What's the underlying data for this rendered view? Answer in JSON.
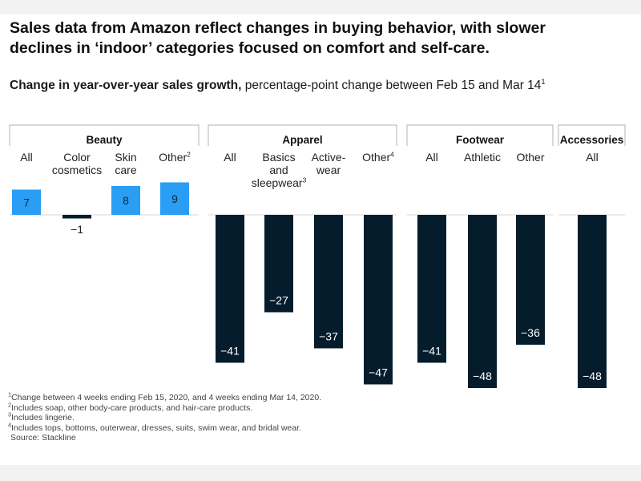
{
  "title": "Sales data from Amazon reflect changes in buying behavior, with slower declines in ‘indoor’ categories focused on comfort and self-care.",
  "subtitle": {
    "bold": "Change in year-over-year sales growth,",
    "rest": " percentage-point change between Feb 15 and Mar 14",
    "sup": "1"
  },
  "colors": {
    "positive": "#2a9df4",
    "negative": "#051c2c",
    "group_line": "#b3b3b3"
  },
  "chart_data": {
    "type": "bar",
    "title": "Change in year-over-year sales growth",
    "ylabel": "percentage-point change between Feb 15 and Mar 14",
    "ylim": [
      -50,
      10
    ],
    "grid": false,
    "groups": [
      {
        "name": "Beauty",
        "categories": [
          {
            "label": "All",
            "sup": "",
            "value": 7
          },
          {
            "label": "Color cosmetics",
            "sup": "",
            "value": -1
          },
          {
            "label": "Skin care",
            "sup": "",
            "value": 8
          },
          {
            "label": "Other",
            "sup": "2",
            "value": 9
          }
        ]
      },
      {
        "name": "Apparel",
        "categories": [
          {
            "label": "All",
            "sup": "",
            "value": -41
          },
          {
            "label": "Basics and sleepwear",
            "sup": "3",
            "value": -27
          },
          {
            "label": "Active-wear",
            "sup": "",
            "value": -37
          },
          {
            "label": "Other",
            "sup": "4",
            "value": -47
          }
        ]
      },
      {
        "name": "Footwear",
        "categories": [
          {
            "label": "All",
            "sup": "",
            "value": -41
          },
          {
            "label": "Athletic",
            "sup": "",
            "value": -48
          },
          {
            "label": "Other",
            "sup": "",
            "value": -36
          }
        ]
      },
      {
        "name": "Accessories",
        "categories": [
          {
            "label": "All",
            "sup": "",
            "value": -48
          }
        ]
      }
    ]
  },
  "footnotes": [
    {
      "sup": "1",
      "text": "Change between 4 weeks ending Feb 15, 2020, and 4 weeks ending Mar 14, 2020."
    },
    {
      "sup": "2",
      "text": "Includes soap, other body-care products, and hair-care products."
    },
    {
      "sup": "3",
      "text": "Includes lingerie."
    },
    {
      "sup": "4",
      "text": "Includes tops, bottoms, outerwear, dresses, suits, swim wear, and bridal wear."
    }
  ],
  "source": "Source: Stackline"
}
